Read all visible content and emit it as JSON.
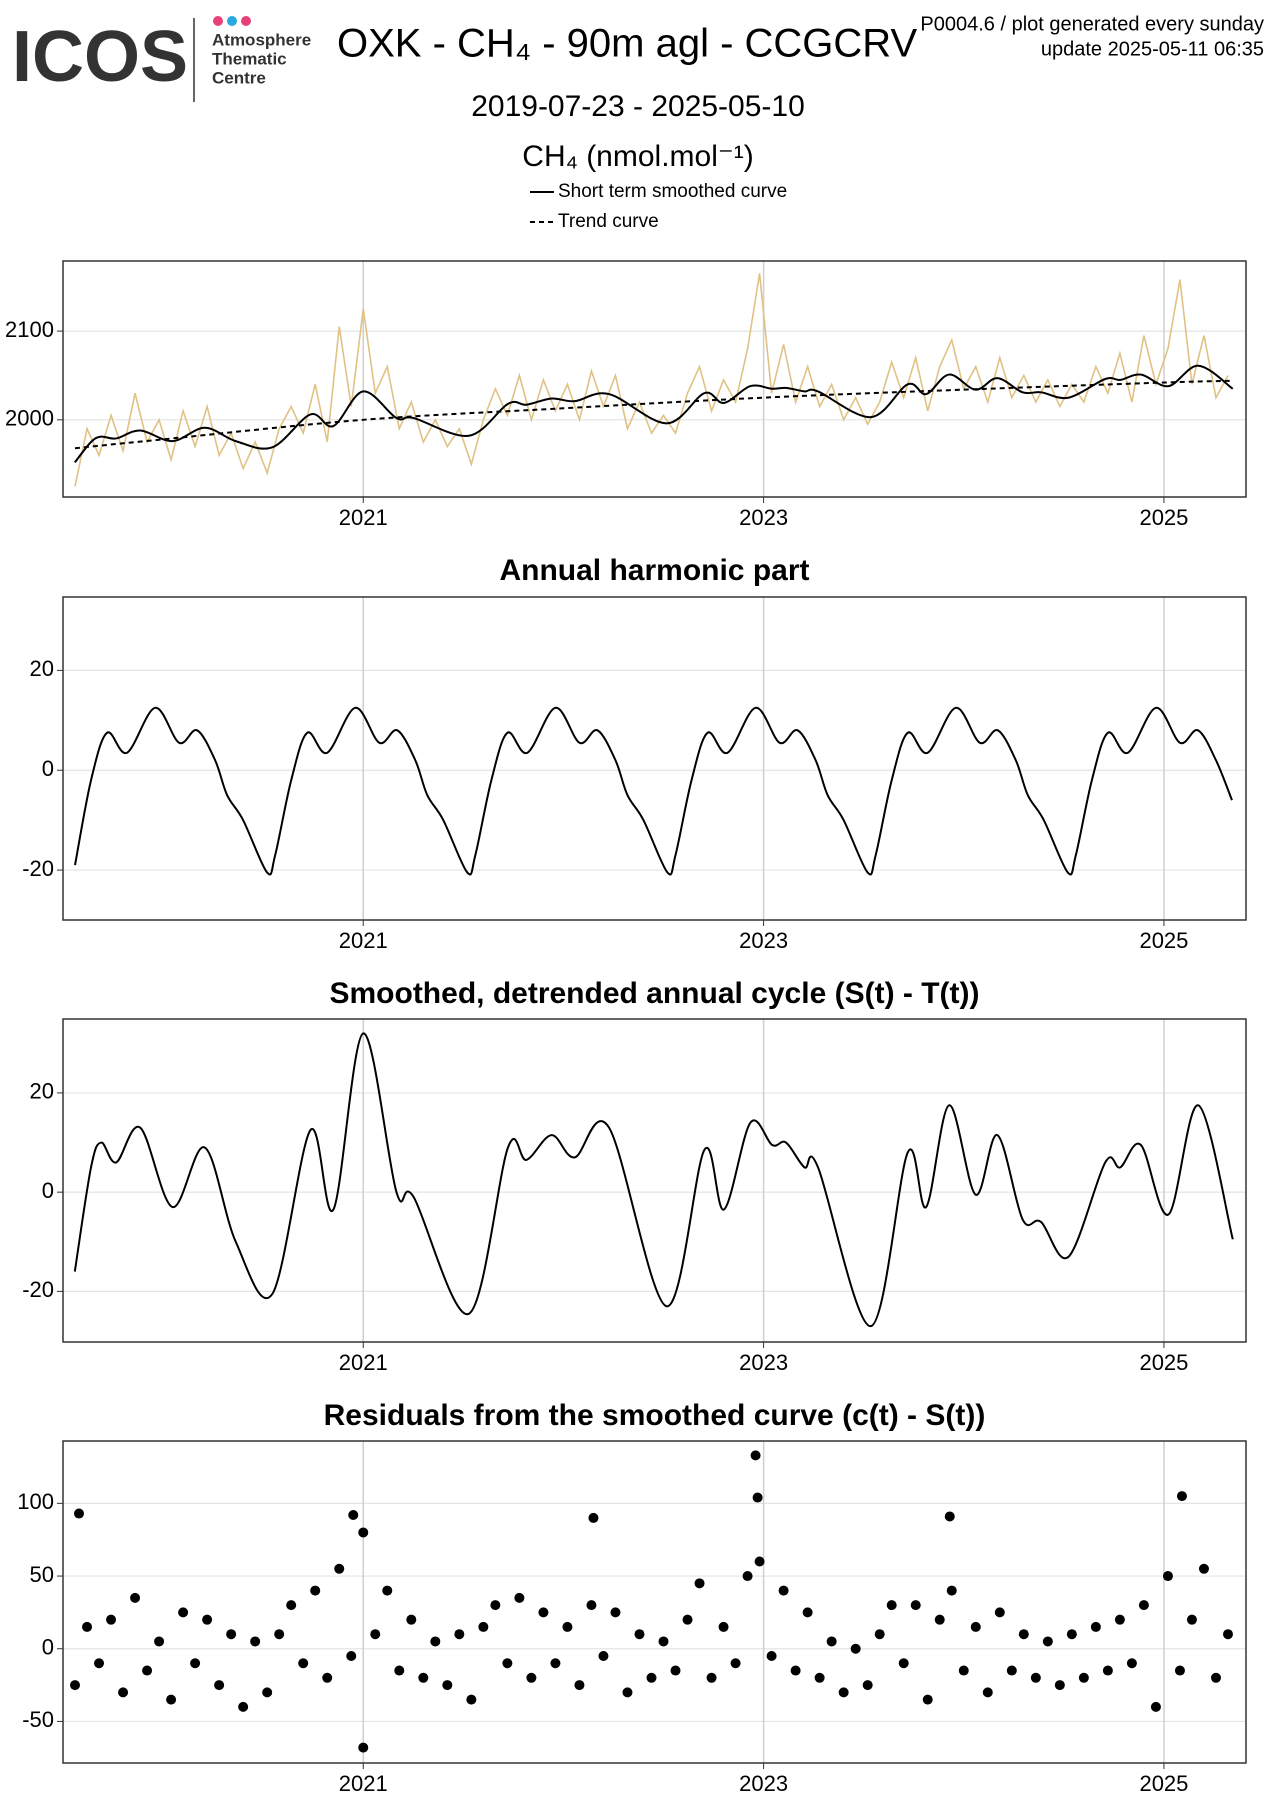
{
  "header": {
    "logo": "ICOS",
    "org_lines": [
      "Atmosphere",
      "Thematic",
      "Centre"
    ],
    "info_lines": [
      "P0004.6 / plot generated every sunday",
      "update  2025-05-11 06:35"
    ]
  },
  "chart_data": [
    {
      "type": "line",
      "title": "OXK - CH₄ - 90m agl - CCGCRV",
      "subtitle": "2019-07-23 - 2025-05-10",
      "y_label": "CH₄ (nmol.mol⁻¹)",
      "xlim": [
        2019.5,
        2025.41
      ],
      "xticks": [
        2021,
        2023,
        2025
      ],
      "ylim": [
        1913,
        2179
      ],
      "yticks": [
        2000,
        2100
      ],
      "grid": true,
      "series": [
        {
          "color": "#e0c285",
          "x": [
            2019.56,
            2019.62,
            2019.68,
            2019.74,
            2019.8,
            2019.86,
            2019.92,
            2019.98,
            2020.04,
            2020.1,
            2020.16,
            2020.22,
            2020.28,
            2020.34,
            2020.4,
            2020.46,
            2020.52,
            2020.58,
            2020.64,
            2020.7,
            2020.76,
            2020.82,
            2020.88,
            2020.94,
            2021,
            2021.06,
            2021.12,
            2021.18,
            2021.24,
            2021.3,
            2021.36,
            2021.42,
            2021.48,
            2021.54,
            2021.6,
            2021.66,
            2021.72,
            2021.78,
            2021.84,
            2021.9,
            2021.96,
            2022.02,
            2022.08,
            2022.14,
            2022.2,
            2022.26,
            2022.32,
            2022.38,
            2022.44,
            2022.5,
            2022.56,
            2022.62,
            2022.68,
            2022.74,
            2022.8,
            2022.86,
            2022.92,
            2022.98,
            2023.04,
            2023.1,
            2023.16,
            2023.22,
            2023.28,
            2023.34,
            2023.4,
            2023.46,
            2023.52,
            2023.58,
            2023.64,
            2023.7,
            2023.76,
            2023.82,
            2023.88,
            2023.94,
            2024,
            2024.06,
            2024.12,
            2024.18,
            2024.24,
            2024.3,
            2024.36,
            2024.42,
            2024.48,
            2024.54,
            2024.6,
            2024.66,
            2024.72,
            2024.78,
            2024.84,
            2024.9,
            2024.96,
            2025.02,
            2025.08,
            2025.14,
            2025.2,
            2025.26,
            2025.32
          ],
          "values": [
            1925,
            1990,
            1960,
            2005,
            1965,
            2030,
            1975,
            2000,
            1955,
            2010,
            1970,
            2015,
            1960,
            1985,
            1945,
            1975,
            1940,
            1990,
            2015,
            1985,
            2040,
            1975,
            2105,
            2015,
            2125,
            2030,
            2060,
            1990,
            2020,
            1975,
            2000,
            1970,
            1990,
            1950,
            2000,
            2035,
            2005,
            2050,
            2000,
            2045,
            2010,
            2040,
            2000,
            2055,
            2015,
            2050,
            1990,
            2020,
            1985,
            2005,
            1985,
            2030,
            2060,
            2010,
            2045,
            2020,
            2080,
            2165,
            2030,
            2085,
            2020,
            2060,
            2015,
            2040,
            2000,
            2025,
            1995,
            2020,
            2065,
            2025,
            2070,
            2010,
            2060,
            2090,
            2035,
            2060,
            2020,
            2070,
            2025,
            2050,
            2020,
            2045,
            2015,
            2040,
            2020,
            2060,
            2030,
            2075,
            2020,
            2095,
            2040,
            2080,
            2158,
            2040,
            2095,
            2025,
            2050
          ]
        },
        {
          "name": "Short term smoothed curve",
          "color": "#000000",
          "x": [
            2019.559,
            2019.64,
            2019.691,
            2019.766,
            2019.886,
            2020.047,
            2020.208,
            2020.363,
            2020.546,
            2020.736,
            2020.851,
            2021,
            2021.166,
            2021.252,
            2021.528,
            2021.723,
            2021.815,
            2021.941,
            2022.056,
            2022.228,
            2022.515,
            2022.704,
            2022.802,
            2022.934,
            2023.043,
            2023.112,
            2023.204,
            2023.272,
            2023.536,
            2023.72,
            2023.812,
            2023.927,
            2024.059,
            2024.168,
            2024.294,
            2024.386,
            2024.524,
            2024.707,
            2024.782,
            2024.885,
            2025.023,
            2025.172,
            2025.344
          ],
          "values": [
            1952,
            1975,
            1981,
            1979,
            1988,
            1976,
            1991,
            1976,
            1969,
            2006,
            1993,
            2032,
            2002,
            2002,
            1982,
            2018,
            2017,
            2024,
            2021,
            2029,
            1996,
            2030,
            2019,
            2038,
            2035,
            2036,
            2032,
            2032,
            2003,
            2040,
            2029,
            2051,
            2034,
            2047,
            2031,
            2031,
            2025,
            2046,
            2045,
            2051,
            2038,
            2061,
            2035
          ]
        },
        {
          "name": "Trend curve",
          "color": "#000000",
          "dash": true,
          "x": [
            2019.56,
            2020,
            2021,
            2022,
            2023,
            2024,
            2025,
            2025.34
          ],
          "values": [
            1968,
            1978,
            2000,
            2013,
            2025,
            2034,
            2042,
            2044
          ]
        }
      ]
    },
    {
      "type": "line",
      "title": "Annual harmonic part",
      "color": "#000000",
      "xlim": [
        2019.5,
        2025.41
      ],
      "xticks": [
        2021,
        2023,
        2025
      ],
      "ylim": [
        -30,
        34.7
      ],
      "yticks": [
        -20,
        0,
        20
      ],
      "grid": true,
      "x": [
        2019.56,
        2019.64,
        2019.72,
        2019.82,
        2019.96,
        2020.08,
        2020.17,
        2020.26,
        2020.32,
        2020.4,
        2020.52,
        2020.56,
        2020.64,
        2020.72,
        2020.82,
        2020.96,
        2021.08,
        2021.17,
        2021.26,
        2021.32,
        2021.4,
        2021.52,
        2021.56,
        2021.64,
        2021.72,
        2021.82,
        2021.96,
        2022.08,
        2022.17,
        2022.26,
        2022.32,
        2022.4,
        2022.52,
        2022.56,
        2022.64,
        2022.72,
        2022.82,
        2022.96,
        2023.08,
        2023.17,
        2023.26,
        2023.32,
        2023.4,
        2023.52,
        2023.56,
        2023.64,
        2023.72,
        2023.82,
        2023.96,
        2024.08,
        2024.17,
        2024.26,
        2024.32,
        2024.4,
        2024.52,
        2024.56,
        2024.64,
        2024.72,
        2024.82,
        2024.96,
        2025.08,
        2025.17,
        2025.26,
        2025.34
      ],
      "values": [
        -19,
        -2,
        7.5,
        3.5,
        12.5,
        5.5,
        8,
        2,
        -5,
        -10,
        -20.5,
        -17,
        -2,
        7.5,
        3.5,
        12.5,
        5.5,
        8,
        2,
        -5,
        -10,
        -20.5,
        -17,
        -2,
        7.5,
        3.5,
        12.5,
        5.5,
        8,
        2,
        -5,
        -10,
        -20.5,
        -17,
        -2,
        7.5,
        3.5,
        12.5,
        5.5,
        8,
        2,
        -5,
        -10,
        -20.5,
        -17,
        -2,
        7.5,
        3.5,
        12.5,
        5.5,
        8,
        2,
        -5,
        -10,
        -20.5,
        -17,
        -2,
        7.5,
        3.5,
        12.5,
        5.5,
        8,
        2,
        -6
      ]
    },
    {
      "type": "line",
      "title": "Smoothed, detrended annual cycle (S(t) - T(t))",
      "color": "#000000",
      "xlim": [
        2019.5,
        2025.41
      ],
      "xticks": [
        2021,
        2023,
        2025
      ],
      "ylim": [
        -30.2,
        34.9
      ],
      "yticks": [
        -20,
        0,
        20
      ],
      "grid": true,
      "x": [
        2019.559,
        2019.64,
        2019.691,
        2019.766,
        2019.886,
        2020.047,
        2020.208,
        2020.363,
        2020.546,
        2020.736,
        2020.851,
        2021,
        2021.166,
        2021.252,
        2021.528,
        2021.723,
        2021.815,
        2021.941,
        2022.056,
        2022.228,
        2022.515,
        2022.704,
        2022.802,
        2022.934,
        2023.043,
        2023.112,
        2023.204,
        2023.272,
        2023.536,
        2023.72,
        2023.812,
        2023.927,
        2024.059,
        2024.168,
        2024.294,
        2024.386,
        2024.524,
        2024.707,
        2024.782,
        2024.885,
        2025.023,
        2025.172,
        2025.344
      ],
      "values": [
        -16,
        5,
        10,
        6,
        13,
        -3,
        9,
        -10,
        -20.5,
        12.5,
        -3.5,
        32,
        0,
        -1,
        -24.5,
        9,
        6.5,
        11.5,
        7,
        13,
        -23,
        8.5,
        -3.5,
        14,
        9.5,
        10,
        5,
        5,
        -27,
        8,
        -3,
        17.5,
        -0.5,
        11.5,
        -5.5,
        -6,
        -13,
        6,
        5,
        9.5,
        -4.5,
        17.5,
        -9.5
      ]
    },
    {
      "type": "scatter",
      "title": "Residuals from the smoothed curve (c(t) - S(t))",
      "color": "#000000",
      "xlim": [
        2019.5,
        2025.41
      ],
      "xticks": [
        2021,
        2023,
        2025
      ],
      "ylim": [
        -78.6,
        142.9
      ],
      "yticks": [
        -50,
        0,
        50,
        100
      ],
      "grid": true,
      "x": [
        2019.56,
        2019.62,
        2019.68,
        2019.74,
        2019.8,
        2019.86,
        2019.92,
        2019.98,
        2020.04,
        2020.1,
        2020.16,
        2020.22,
        2020.28,
        2020.34,
        2020.4,
        2020.46,
        2020.52,
        2020.58,
        2020.64,
        2020.7,
        2020.76,
        2020.82,
        2020.88,
        2020.94,
        2021,
        2021.06,
        2021.12,
        2021.18,
        2021.24,
        2021.3,
        2021.36,
        2021.42,
        2021.48,
        2021.54,
        2021.6,
        2021.66,
        2021.72,
        2021.78,
        2021.84,
        2021.9,
        2021.96,
        2022.02,
        2022.08,
        2022.14,
        2022.2,
        2022.26,
        2022.32,
        2022.38,
        2022.44,
        2022.5,
        2022.56,
        2022.62,
        2022.68,
        2022.74,
        2022.8,
        2022.86,
        2022.92,
        2022.98,
        2023.04,
        2023.1,
        2023.16,
        2023.22,
        2023.28,
        2023.34,
        2023.4,
        2023.46,
        2023.52,
        2023.58,
        2023.64,
        2023.7,
        2023.76,
        2023.82,
        2023.88,
        2023.94,
        2024,
        2024.06,
        2024.12,
        2024.18,
        2024.24,
        2024.3,
        2024.36,
        2024.42,
        2024.48,
        2024.54,
        2024.6,
        2024.66,
        2024.72,
        2024.78,
        2024.84,
        2024.9,
        2024.96,
        2025.02,
        2025.08,
        2025.14,
        2025.2,
        2025.26,
        2025.32,
        2019.58,
        2021,
        2022.96,
        2022.97,
        2025.09,
        2023.93,
        2022.15,
        2020.95
      ],
      "values": [
        -25,
        15,
        -10,
        20,
        -30,
        35,
        -15,
        5,
        -35,
        25,
        -10,
        20,
        -25,
        10,
        -40,
        5,
        -30,
        10,
        30,
        -10,
        40,
        -20,
        55,
        -5,
        80,
        10,
        40,
        -15,
        20,
        -20,
        5,
        -25,
        10,
        -35,
        15,
        30,
        -10,
        35,
        -20,
        25,
        -10,
        15,
        -25,
        30,
        -5,
        25,
        -30,
        10,
        -20,
        5,
        -15,
        20,
        45,
        -20,
        15,
        -10,
        50,
        60,
        -5,
        40,
        -15,
        25,
        -20,
        5,
        -30,
        0,
        -25,
        10,
        30,
        -10,
        30,
        -35,
        20,
        40,
        -15,
        15,
        -30,
        25,
        -15,
        10,
        -20,
        5,
        -25,
        10,
        -20,
        15,
        -15,
        20,
        -10,
        30,
        -40,
        50,
        -15,
        20,
        55,
        -20,
        10,
        93,
        -68,
        133,
        104,
        105,
        91,
        90,
        92
      ]
    }
  ]
}
